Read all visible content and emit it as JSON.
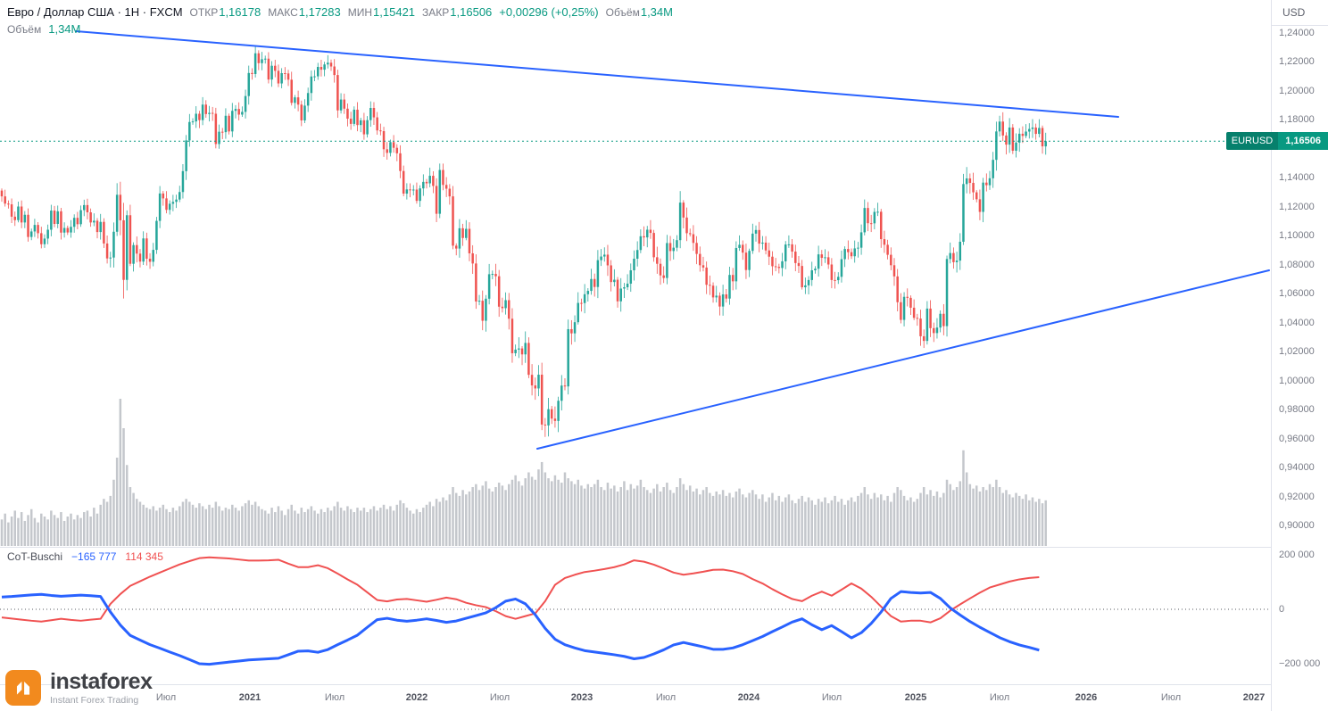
{
  "header": {
    "symbol_title": "Евро / Доллар США · 1Н · FXCM",
    "open_label": "ОТКР",
    "open_value": "1,16178",
    "high_label": "МАКС",
    "high_value": "1,17283",
    "low_label": "МИН",
    "low_value": "1,15421",
    "close_label": "ЗАКР",
    "close_value": "1,16506",
    "change_value": "+0,00296 (+0,25%)",
    "volume_label": "Объём",
    "volume_value": "1,34М"
  },
  "volume_legend": {
    "label": "Объём",
    "value": "1,34М"
  },
  "price_axis": {
    "currency": "USD",
    "labels": [
      "1,24000",
      "1,22000",
      "1,20000",
      "1,18000",
      "1,14000",
      "1,12000",
      "1,10000",
      "1,08000",
      "1,06000",
      "1,04000",
      "1,02000",
      "1,00000",
      "0,98000",
      "0,96000",
      "0,94000",
      "0,92000",
      "0,90000"
    ],
    "values": [
      1.24,
      1.22,
      1.2,
      1.18,
      1.14,
      1.12,
      1.1,
      1.08,
      1.06,
      1.04,
      1.02,
      1.0,
      0.98,
      0.96,
      0.94,
      0.92,
      0.9
    ]
  },
  "price_badge": {
    "symbol": "EURUSD",
    "price": "1,16506"
  },
  "indicator": {
    "name": "CoT-Buschi",
    "blue_value": "−165 777",
    "red_value": "114 345",
    "axis_labels": [
      "200 000",
      "0",
      "−200 000"
    ],
    "axis_y": [
      622,
      683,
      744
    ]
  },
  "time_axis": [
    {
      "label": "Июл",
      "x": 186,
      "year": false
    },
    {
      "label": "2021",
      "x": 280,
      "year": true
    },
    {
      "label": "Июл",
      "x": 375,
      "year": false
    },
    {
      "label": "2022",
      "x": 467,
      "year": true
    },
    {
      "label": "Июл",
      "x": 560,
      "year": false
    },
    {
      "label": "2023",
      "x": 652,
      "year": true
    },
    {
      "label": "Июл",
      "x": 746,
      "year": false
    },
    {
      "label": "2024",
      "x": 839,
      "year": true
    },
    {
      "label": "Июл",
      "x": 932,
      "year": false
    },
    {
      "label": "2025",
      "x": 1026,
      "year": true
    },
    {
      "label": "Июл",
      "x": 1120,
      "year": false
    },
    {
      "label": "2026",
      "x": 1217,
      "year": true
    },
    {
      "label": "Июл",
      "x": 1312,
      "year": false
    },
    {
      "label": "2027",
      "x": 1405,
      "year": true
    }
  ],
  "logo": {
    "brand": "instaforex",
    "tagline": "Instant Forex Trading"
  },
  "colors": {
    "up": "#26a69a",
    "down": "#ef5350",
    "volume": "#c4c7cc",
    "trendline": "#2962ff",
    "price_line": "#089981",
    "cot_blue": "#2962ff",
    "cot_red": "#f05151",
    "axis_text": "#787b86",
    "separator": "#e0e3eb"
  },
  "chart_data": {
    "type": "candlestick",
    "symbol": "EURUSD",
    "timeframe": "1W",
    "title": "Евро / Доллар США · 1Н · FXCM",
    "ylim": [
      0.886,
      1.245
    ],
    "last_price": 1.16506,
    "first_open": 1.131,
    "weekly_closes": [
      1.127,
      1.122,
      1.1215,
      1.113,
      1.1106,
      1.12,
      1.109,
      1.1143,
      1.099,
      1.1028,
      1.1073,
      1.1016,
      1.094,
      1.0979,
      1.104,
      1.1172,
      1.108,
      1.1167,
      1.102,
      1.1052,
      1.1021,
      1.106,
      1.1122,
      1.1078,
      1.1175,
      1.121,
      1.116,
      1.109,
      1.1102,
      1.1024,
      1.1094,
      1.0945,
      1.0842,
      1.0848,
      1.1026,
      1.1281,
      1.1105,
      1.0694,
      1.114,
      1.0805,
      1.0934,
      1.0875,
      1.082,
      1.098,
      1.084,
      1.0819,
      1.0901,
      1.1101,
      1.129,
      1.1256,
      1.1177,
      1.1219,
      1.1232,
      1.1248,
      1.13,
      1.1444,
      1.1656,
      1.1783,
      1.1787,
      1.184,
      1.1796,
      1.1903,
      1.1838,
      1.1846,
      1.184,
      1.1631,
      1.1716,
      1.1713,
      1.1826,
      1.1718,
      1.186,
      1.1873,
      1.1834,
      1.1853,
      1.1962,
      1.2121,
      1.2114,
      1.2257,
      1.2189,
      1.2216,
      1.222,
      1.2076,
      1.2171,
      1.2136,
      1.2049,
      1.212,
      1.2118,
      1.2075,
      1.1915,
      1.1953,
      1.1903,
      1.1794,
      1.1896,
      1.1983,
      1.2097,
      1.2098,
      1.2163,
      1.2144,
      1.218,
      1.2192,
      1.2166,
      1.2107,
      1.1863,
      1.1938,
      1.1875,
      1.1806,
      1.177,
      1.1868,
      1.1762,
      1.1795,
      1.1698,
      1.1796,
      1.188,
      1.1815,
      1.1725,
      1.172,
      1.1595,
      1.157,
      1.1644,
      1.1605,
      1.1567,
      1.1445,
      1.1289,
      1.1318,
      1.1313,
      1.1317,
      1.1239,
      1.1325,
      1.137,
      1.136,
      1.1412,
      1.1342,
      1.115,
      1.1452,
      1.1349,
      1.1323,
      1.127,
      1.093,
      1.091,
      1.105,
      1.0983,
      1.1046,
      1.0877,
      1.0807,
      1.0545,
      1.055,
      1.0412,
      1.0564,
      1.0733,
      1.0735,
      1.0719,
      1.0509,
      1.0499,
      1.0554,
      1.0426,
      1.0188,
      1.0213,
      1.0221,
      1.018,
      1.0259,
      1.0039,
      0.9966,
      0.9945,
      1.004,
      0.9696,
      0.969,
      0.9802,
      0.9737,
      0.9721,
      0.986,
      0.9965,
      0.9959,
      1.0354,
      1.0325,
      1.0402,
      1.0535,
      1.0534,
      1.0595,
      1.0618,
      1.07,
      1.0645,
      1.083,
      1.0855,
      1.0868,
      1.0794,
      1.0679,
      1.0695,
      1.0546,
      1.0634,
      1.0643,
      1.0668,
      1.076,
      1.084,
      1.09,
      1.0995,
      1.0987,
      1.104,
      1.1018,
      1.085,
      1.0805,
      1.0725,
      1.0707,
      1.0948,
      1.0893,
      1.0916,
      1.0968,
      1.1227,
      1.1124,
      1.1016,
      1.1009,
      1.0949,
      1.0873,
      1.0795,
      1.0779,
      1.066,
      1.0654,
      1.0573,
      1.0585,
      1.051,
      1.0594,
      1.0565,
      1.0728,
      1.0684,
      1.0914,
      1.0936,
      1.0882,
      1.0762,
      1.0894,
      1.1013,
      1.1038,
      1.0944,
      1.0951,
      1.0897,
      1.0854,
      1.0788,
      1.0784,
      1.0776,
      1.0822,
      1.0938,
      1.0939,
      1.0889,
      1.081,
      1.079,
      1.0643,
      1.0656,
      1.0693,
      1.076,
      1.0771,
      1.087,
      1.0846,
      1.085,
      1.08,
      1.0693,
      1.0692,
      1.0715,
      1.0837,
      1.0907,
      1.0885,
      1.0857,
      1.0911,
      1.0916,
      1.1022,
      1.119,
      1.1085,
      1.1084,
      1.1163,
      1.1164,
      1.0975,
      1.0936,
      1.0867,
      1.0795,
      1.0718,
      1.054,
      1.0418,
      1.0577,
      1.057,
      1.0502,
      1.0432,
      1.0427,
      1.0305,
      1.0273,
      1.0496,
      1.0361,
      1.0327,
      1.0365,
      1.046,
      1.0375,
      1.0838,
      1.0879,
      1.0816,
      1.0827,
      1.0957,
      1.1355,
      1.1394,
      1.1363,
      1.1298,
      1.125,
      1.1163,
      1.1365,
      1.1347,
      1.1395,
      1.1522,
      1.1718,
      1.1786,
      1.169,
      1.1627,
      1.1745,
      1.1585,
      1.1641,
      1.1702,
      1.1687,
      1.1717,
      1.1735,
      1.1745,
      1.1701,
      1.1742,
      1.1615,
      1.16506
    ],
    "volume_rel": [
      18,
      22,
      16,
      20,
      24,
      19,
      23,
      17,
      21,
      25,
      19,
      16,
      22,
      20,
      18,
      24,
      21,
      19,
      23,
      17,
      20,
      22,
      18,
      21,
      19,
      23,
      24,
      20,
      26,
      22,
      28,
      32,
      30,
      34,
      45,
      60,
      100,
      80,
      55,
      40,
      36,
      32,
      30,
      28,
      26,
      25,
      27,
      24,
      26,
      28,
      25,
      23,
      26,
      24,
      27,
      30,
      32,
      30,
      28,
      26,
      29,
      27,
      25,
      28,
      26,
      30,
      27,
      24,
      26,
      25,
      28,
      26,
      24,
      27,
      29,
      31,
      28,
      30,
      27,
      25,
      24,
      22,
      26,
      23,
      27,
      24,
      21,
      25,
      28,
      24,
      22,
      26,
      23,
      25,
      27,
      24,
      22,
      25,
      23,
      26,
      24,
      27,
      30,
      26,
      24,
      27,
      25,
      23,
      26,
      24,
      26,
      23,
      25,
      27,
      24,
      26,
      28,
      25,
      27,
      24,
      28,
      31,
      29,
      26,
      24,
      22,
      25,
      23,
      26,
      28,
      30,
      27,
      32,
      30,
      33,
      31,
      35,
      40,
      36,
      34,
      38,
      35,
      37,
      40,
      42,
      38,
      41,
      44,
      39,
      37,
      40,
      43,
      41,
      38,
      42,
      45,
      48,
      44,
      41,
      46,
      50,
      47,
      45,
      52,
      57,
      50,
      46,
      44,
      48,
      45,
      43,
      50,
      46,
      44,
      42,
      45,
      41,
      39,
      42,
      40,
      42,
      45,
      40,
      38,
      43,
      39,
      41,
      37,
      40,
      44,
      38,
      42,
      39,
      41,
      45,
      40,
      38,
      36,
      39,
      42,
      37,
      40,
      43,
      38,
      36,
      40,
      46,
      42,
      38,
      41,
      37,
      39,
      35,
      38,
      40,
      36,
      34,
      37,
      35,
      38,
      34,
      36,
      33,
      37,
      39,
      35,
      33,
      36,
      38,
      35,
      32,
      35,
      30,
      33,
      36,
      31,
      34,
      30,
      33,
      35,
      31,
      29,
      32,
      34,
      30,
      33,
      31,
      28,
      32,
      30,
      33,
      29,
      31,
      34,
      30,
      32,
      28,
      31,
      33,
      30,
      34,
      36,
      40,
      35,
      32,
      36,
      33,
      35,
      31,
      34,
      30,
      36,
      40,
      38,
      34,
      31,
      33,
      30,
      32,
      36,
      40,
      35,
      38,
      34,
      37,
      33,
      36,
      45,
      42,
      38,
      40,
      44,
      65,
      50,
      42,
      39,
      41,
      37,
      40,
      38,
      42,
      40,
      45,
      40,
      36,
      38,
      35,
      33,
      36,
      34,
      32,
      35,
      31,
      33,
      30,
      32,
      29,
      31
    ],
    "cot": {
      "label": "CoT-Buschi",
      "range": [
        -200000,
        200000
      ],
      "sample_step": 3,
      "blue_last": -165777,
      "red_last": 114345,
      "blue_thousands": [
        45,
        47,
        50,
        53,
        55,
        51,
        48,
        50,
        52,
        50,
        47,
        -10,
        -58,
        -96,
        -113,
        -130,
        -143,
        -157,
        -170,
        -185,
        -200,
        -202,
        -198,
        -194,
        -190,
        -186,
        -184,
        -182,
        -180,
        -167,
        -154,
        -153,
        -158,
        -148,
        -130,
        -113,
        -95,
        -66,
        -38,
        -33,
        -40,
        -44,
        -40,
        -35,
        -41,
        -48,
        -43,
        -33,
        -23,
        -13,
        6,
        30,
        38,
        20,
        -20,
        -70,
        -110,
        -130,
        -142,
        -152,
        -157,
        -162,
        -167,
        -173,
        -182,
        -177,
        -164,
        -149,
        -131,
        -122,
        -130,
        -138,
        -147,
        -147,
        -142,
        -130,
        -115,
        -100,
        -82,
        -65,
        -47,
        -35,
        -57,
        -75,
        -60,
        -82,
        -105,
        -86,
        -52,
        -10,
        40,
        65,
        62,
        60,
        62,
        40,
        5,
        -21,
        -45,
        -66,
        -85,
        -104,
        -119,
        -131,
        -140,
        -150
      ],
      "red_thousands": [
        -30,
        -34,
        -38,
        -42,
        -45,
        -40,
        -35,
        -39,
        -42,
        -38,
        -35,
        20,
        56,
        86,
        103,
        120,
        135,
        150,
        165,
        177,
        188,
        191,
        189,
        187,
        183,
        179,
        179,
        180,
        182,
        168,
        155,
        155,
        162,
        151,
        131,
        110,
        90,
        62,
        34,
        29,
        36,
        38,
        33,
        28,
        35,
        43,
        37,
        24,
        15,
        8,
        -7,
        -25,
        -35,
        -25,
        -15,
        30,
        90,
        115,
        127,
        137,
        142,
        148,
        155,
        165,
        180,
        175,
        164,
        150,
        135,
        127,
        132,
        138,
        145,
        146,
        140,
        130,
        111,
        95,
        74,
        55,
        38,
        30,
        50,
        65,
        50,
        72,
        95,
        76,
        46,
        10,
        -25,
        -45,
        -42,
        -42,
        -48,
        -33,
        -5,
        18,
        40,
        61,
        80,
        91,
        102,
        110,
        115,
        118
      ]
    },
    "trendlines": [
      {
        "x1": 85,
        "y1": 35,
        "x2": 1253,
        "y2": 131
      },
      {
        "x1": 602,
        "y1": 503,
        "x2": 1422,
        "y2": 303
      }
    ]
  }
}
